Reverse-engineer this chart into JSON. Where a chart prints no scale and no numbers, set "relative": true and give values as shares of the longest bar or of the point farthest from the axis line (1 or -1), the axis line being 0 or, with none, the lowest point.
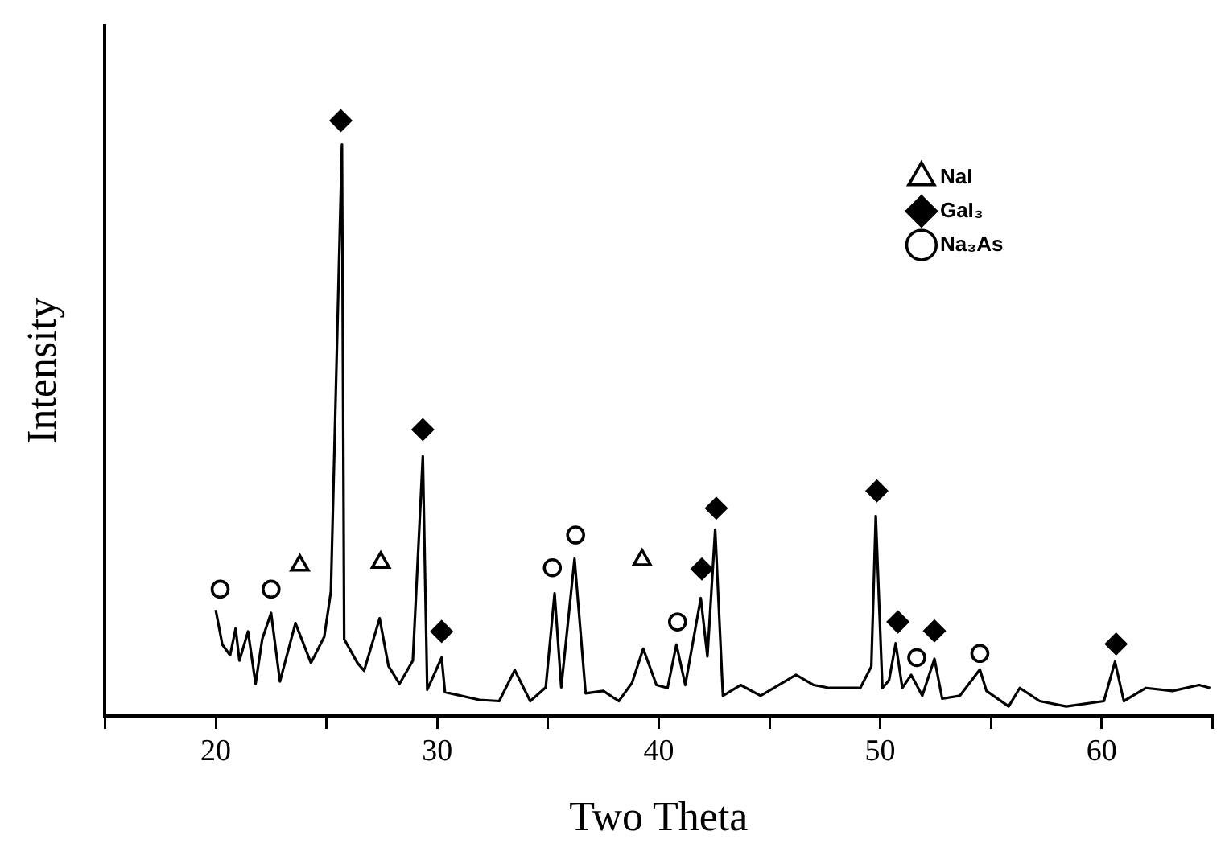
{
  "chart_data": {
    "type": "line",
    "xlabel": "Two Theta",
    "ylabel": "Intensity",
    "relative": true,
    "legend": "top right",
    "grid": false,
    "xlim": [
      15,
      65
    ],
    "xticks": [
      {
        "value": 15,
        "label": null
      },
      20,
      {
        "value": 25,
        "label": null
      },
      30,
      {
        "value": 35,
        "label": null
      },
      40,
      {
        "value": 45,
        "label": null
      },
      50,
      {
        "value": 55,
        "label": null
      },
      60,
      {
        "value": 65,
        "label": null
      }
    ],
    "series": [
      {
        "type": "line",
        "color": "#000000",
        "marker": "none",
        "x": [
          20.0,
          20.3,
          20.65,
          20.9,
          21.07,
          21.46,
          21.8,
          22.1,
          22.5,
          22.9,
          23.6,
          24.3,
          24.9,
          25.2,
          25.7,
          25.8,
          26.4,
          26.7,
          27.4,
          27.8,
          28.3,
          28.9,
          29.35,
          29.55,
          30.2,
          30.35,
          31.9,
          32.8,
          33.5,
          34.2,
          34.9,
          35.3,
          35.6,
          36.2,
          36.7,
          37.5,
          38.2,
          38.8,
          39.3,
          39.9,
          40.4,
          40.8,
          41.2,
          41.9,
          42.2,
          42.55,
          42.9,
          43.7,
          44.6,
          46.2,
          47.0,
          47.7,
          49.1,
          49.6,
          49.8,
          50.1,
          50.4,
          50.7,
          51.0,
          51.4,
          51.9,
          52.45,
          52.8,
          53.6,
          54.5,
          54.8,
          55.8,
          56.3,
          57.2,
          58.4,
          60.1,
          60.6,
          61.0,
          62.0,
          63.2,
          64.4,
          64.9
        ],
        "values": [
          0.178,
          0.12,
          0.102,
          0.147,
          0.093,
          0.142,
          0.054,
          0.129,
          0.173,
          0.058,
          0.156,
          0.089,
          0.133,
          0.209,
          0.96,
          0.129,
          0.089,
          0.076,
          0.164,
          0.084,
          0.054,
          0.093,
          0.436,
          0.044,
          0.098,
          0.04,
          0.027,
          0.025,
          0.077,
          0.025,
          0.048,
          0.206,
          0.048,
          0.264,
          0.038,
          0.042,
          0.025,
          0.056,
          0.113,
          0.052,
          0.047,
          0.12,
          0.052,
          0.198,
          0.1,
          0.313,
          0.034,
          0.052,
          0.034,
          0.069,
          0.052,
          0.047,
          0.047,
          0.083,
          0.336,
          0.047,
          0.06,
          0.122,
          0.047,
          0.069,
          0.034,
          0.096,
          0.029,
          0.034,
          0.078,
          0.042,
          0.016,
          0.047,
          0.025,
          0.016,
          0.025,
          0.091,
          0.025,
          0.047,
          0.042,
          0.052,
          0.047
        ]
      },
      {
        "type": "scatter",
        "name": "NaI",
        "color": "#000000",
        "marker": "triangle",
        "x": [
          23.8,
          27.45,
          39.25
        ],
        "values": [
          0.253,
          0.258,
          0.262
        ]
      },
      {
        "type": "scatter",
        "name": "GaI₃",
        "color": "#000000",
        "marker": "diamond",
        "x": [
          25.65,
          29.35,
          30.2,
          41.95,
          42.6,
          49.85,
          50.8,
          52.45,
          60.65
        ],
        "values": [
          1.0,
          0.481,
          0.142,
          0.247,
          0.349,
          0.378,
          0.158,
          0.143,
          0.121
        ]
      },
      {
        "type": "scatter",
        "name": "Na₃As",
        "color": "#000000",
        "marker": "circle",
        "x": [
          20.2,
          22.5,
          35.2,
          36.25,
          40.85,
          51.65,
          54.5
        ],
        "values": [
          0.213,
          0.213,
          0.249,
          0.304,
          0.158,
          0.098,
          0.105
        ]
      }
    ]
  }
}
